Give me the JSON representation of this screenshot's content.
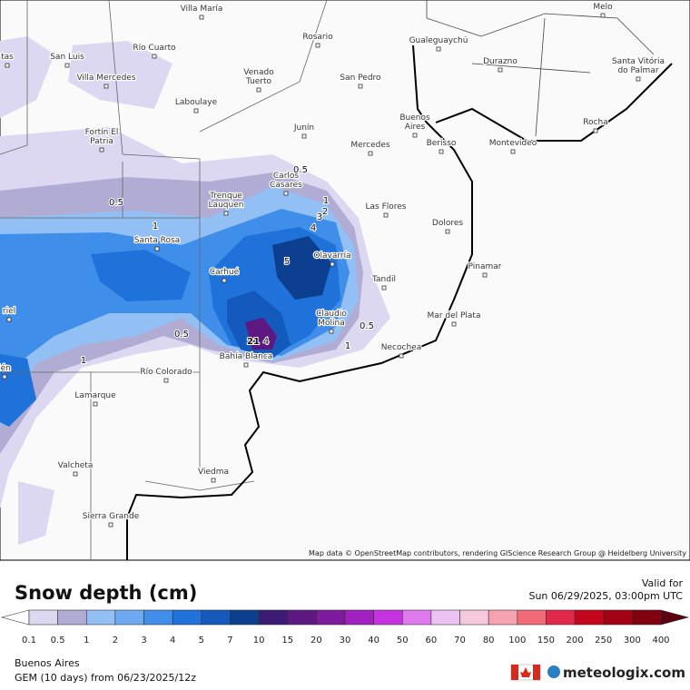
{
  "map": {
    "attribution": "Map data © OpenStreetMap contributors, rendering GIScience Research Group @ Heidelberg University",
    "cities": [
      {
        "lines": [
          "Villa María"
        ]
      },
      {
        "lines": [
          "San Luis"
        ]
      },
      {
        "lines": [
          "Río Cuarto"
        ]
      },
      {
        "lines": [
          "Rosario"
        ]
      },
      {
        "lines": [
          "Gualeguaychú"
        ]
      },
      {
        "lines": [
          "Melo"
        ]
      },
      {
        "lines": [
          "Durazno"
        ]
      },
      {
        "lines": [
          "Santa Vitória",
          "do Palmar"
        ]
      },
      {
        "lines": [
          "Villa Mercedes"
        ]
      },
      {
        "lines": [
          "Venado",
          "Tuerto"
        ]
      },
      {
        "lines": [
          "San Pedro"
        ]
      },
      {
        "lines": [
          "Laboulaye"
        ]
      },
      {
        "lines": [
          "Buenos",
          "Aires"
        ]
      },
      {
        "lines": [
          "Rocha"
        ]
      },
      {
        "lines": [
          "Fortín El",
          "Patria"
        ]
      },
      {
        "lines": [
          "Junín"
        ]
      },
      {
        "lines": [
          "Mercedes"
        ]
      },
      {
        "lines": [
          "Berisso"
        ]
      },
      {
        "lines": [
          "Montevideo"
        ]
      },
      {
        "lines": [
          "Carlos",
          "Casares"
        ]
      },
      {
        "lines": [
          "Trenque",
          "Lauquen"
        ]
      },
      {
        "lines": [
          "Las Flores"
        ]
      },
      {
        "lines": [
          "Dolores"
        ]
      },
      {
        "lines": [
          "Santa Rosa"
        ]
      },
      {
        "lines": [
          "Olavarría"
        ]
      },
      {
        "lines": [
          "Pinamar"
        ]
      },
      {
        "lines": [
          "Carhué"
        ]
      },
      {
        "lines": [
          "Tandil"
        ]
      },
      {
        "lines": [
          "Claudio",
          "Molina"
        ]
      },
      {
        "lines": [
          "Mar del Plata"
        ]
      },
      {
        "lines": [
          "Necochea"
        ]
      },
      {
        "lines": [
          "Bahía Blanca"
        ]
      },
      {
        "lines": [
          "Río Colorado"
        ]
      },
      {
        "lines": [
          "Lamarque"
        ]
      },
      {
        "lines": [
          "Valcheta"
        ]
      },
      {
        "lines": [
          "Viedma"
        ]
      },
      {
        "lines": [
          "Sierra Grande"
        ]
      },
      {
        "lines": [
          "tas"
        ]
      },
      {
        "lines": [
          "riel"
        ]
      },
      {
        "lines": [
          "lén"
        ]
      }
    ],
    "contour_labels": [
      "0.5",
      "1",
      "2",
      "3",
      "4",
      "5",
      "0.5",
      "1",
      "0.5",
      "1",
      "0.5",
      "1",
      "21",
      "4"
    ]
  },
  "legend": {
    "title": "Snow depth (cm)",
    "ticks": [
      0.1,
      0.5,
      1,
      2,
      3,
      4,
      5,
      7,
      10,
      15,
      20,
      30,
      40,
      50,
      60,
      70,
      80,
      100,
      150,
      200,
      250,
      300,
      400
    ],
    "colors": [
      "#dcd8f2",
      "#b0acd4",
      "#92c0f4",
      "#6eaaf2",
      "#3f8eea",
      "#1f72da",
      "#1459bc",
      "#0d3f90",
      "#3b1b74",
      "#5d1882",
      "#7c1b9e",
      "#a220c0",
      "#c732e0",
      "#df7aee",
      "#efc2f4",
      "#f6c8dc",
      "#f6a2b0",
      "#f06a78",
      "#e0284a",
      "#c4061c",
      "#a20416",
      "#800010"
    ],
    "low_color": "#ffffff",
    "high_color": "#5a0012"
  },
  "footer": {
    "valid_label": "Valid for",
    "valid_time": "Sun 06/29/2025, 03:00pm UTC",
    "region": "Buenos Aires",
    "model": "GEM (10 days) from 06/23/2025/12z",
    "brand": "meteologix.com"
  }
}
